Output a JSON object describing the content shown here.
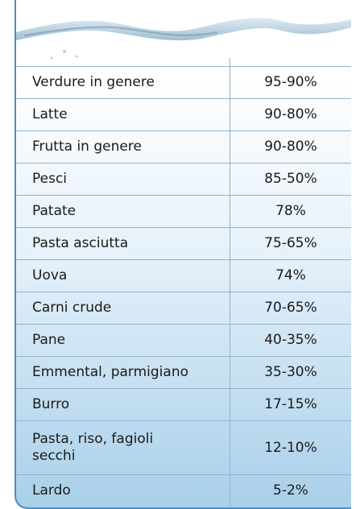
{
  "table": {
    "rows": [
      [
        "Verdure in genere",
        "95-90%"
      ],
      [
        "Latte",
        "90-80%"
      ],
      [
        "Frutta in genere",
        "90-80%"
      ],
      [
        "Pesci",
        "85-50%"
      ],
      [
        "Patate",
        "78%"
      ],
      [
        "Pasta asciutta",
        "75-65%"
      ],
      [
        "Uova",
        "74%"
      ],
      [
        "Carni crude",
        "70-65%"
      ],
      [
        "Pane",
        "40-35%"
      ],
      [
        "Emmental, parmigiano",
        "35-30%"
      ],
      [
        "Burro",
        "17-15%"
      ],
      [
        "Pasta, riso, fagioli secchi",
        "12-10%"
      ],
      [
        "Lardo",
        "5-2%"
      ]
    ]
  }
}
